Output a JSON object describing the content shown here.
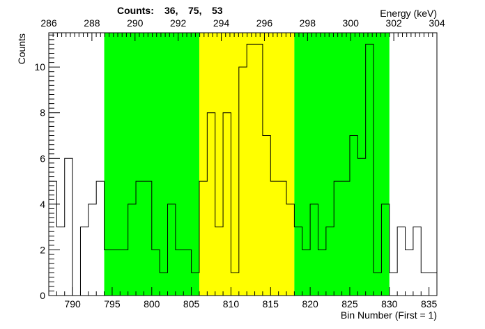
{
  "chart_data": {
    "type": "histogram",
    "title": "",
    "counts_header": {
      "label": "Counts:",
      "values": [
        "36,",
        "75,",
        "53"
      ]
    },
    "xlabel": "Bin Number (First = 1)",
    "ylabel": "Counts",
    "top_axis_label": "Energy (keV)",
    "xlim": [
      787,
      836
    ],
    "ylim": [
      0,
      11.5
    ],
    "x_ticks": [
      790,
      795,
      800,
      805,
      810,
      815,
      820,
      825,
      830,
      835
    ],
    "y_ticks": [
      0,
      2,
      4,
      6,
      8,
      10
    ],
    "top_ticks": [
      286,
      288,
      290,
      292,
      294,
      296,
      298,
      300,
      302,
      304
    ],
    "top_axis_mapping": {
      "bin": [
        787,
        836
      ],
      "energy": [
        286,
        304
      ]
    },
    "regions": [
      {
        "from": 794,
        "to": 806,
        "color": "#00ff00"
      },
      {
        "from": 806,
        "to": 818,
        "color": "#ffff00"
      },
      {
        "from": 818,
        "to": 830,
        "color": "#00ff00"
      }
    ],
    "bins": {
      "start": 787,
      "width": 1,
      "values": [
        5,
        3,
        6,
        0,
        3,
        4,
        5,
        2,
        2,
        2,
        4,
        5,
        5,
        2,
        1,
        4,
        2,
        2,
        1,
        5,
        8,
        3,
        8,
        1,
        10,
        11,
        11,
        7,
        5,
        5,
        4,
        3,
        2,
        4,
        2,
        3,
        5,
        5,
        7,
        6,
        11,
        1,
        4,
        1,
        3,
        2,
        3,
        1,
        1
      ]
    },
    "grid": false,
    "legend": "none",
    "line_color": "#000000"
  }
}
